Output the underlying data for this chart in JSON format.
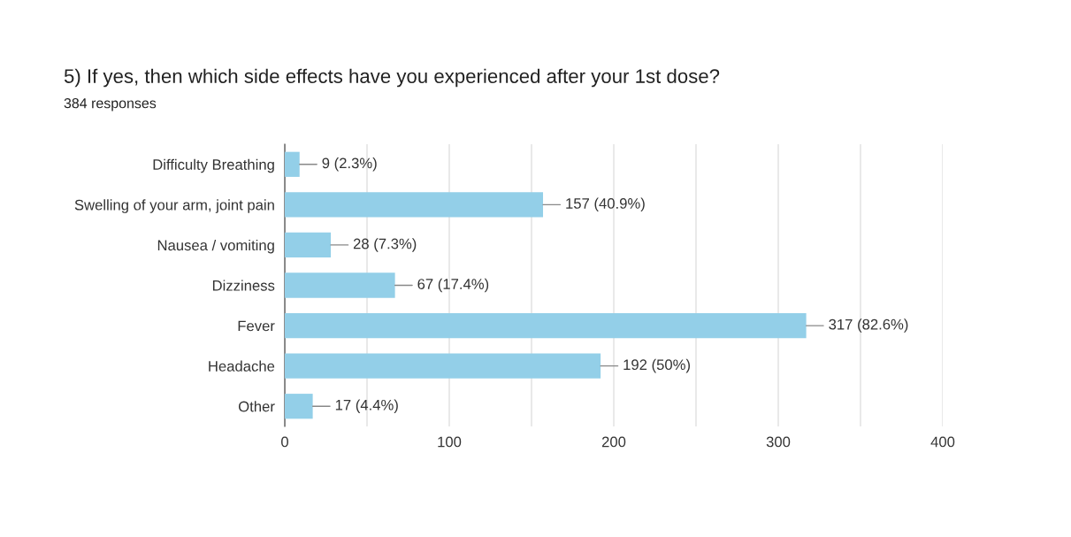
{
  "chart_data": {
    "type": "bar",
    "orientation": "horizontal",
    "title": "5) If yes, then which side effects have you experienced after your 1st dose?",
    "subtitle": "384 responses",
    "categories": [
      "Difficulty Breathing",
      "Swelling of your arm, joint pain",
      "Nausea / vomiting",
      "Dizziness",
      "Fever",
      "Headache",
      "Other"
    ],
    "values": [
      9,
      157,
      28,
      67,
      317,
      192,
      17
    ],
    "value_labels": [
      "9 (2.3%)",
      "157 (40.9%)",
      "28 (7.3%)",
      "67 (17.4%)",
      "317 (82.6%)",
      "192 (50%)",
      "17 (4.4%)"
    ],
    "color": "#93cfe8",
    "xlim": [
      0,
      400
    ],
    "xticks": [
      0,
      {
        "value": 50,
        "label": null
      },
      100,
      {
        "value": 150,
        "label": null
      },
      200,
      {
        "value": 250,
        "label": null
      },
      300,
      {
        "value": 350,
        "label": null
      },
      400
    ],
    "grid": "x"
  }
}
